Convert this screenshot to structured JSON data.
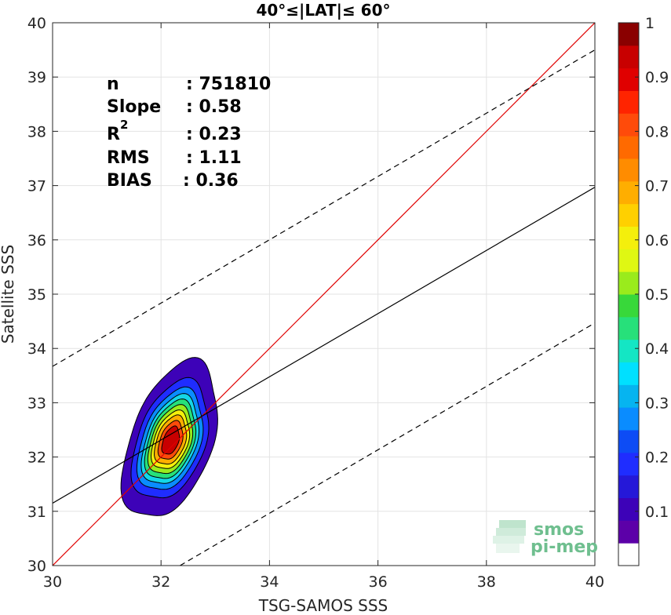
{
  "chart_data": {
    "type": "heatmap",
    "title": "40°≤|LAT|≤ 60°",
    "xlabel": "TSG-SAMOS SSS",
    "ylabel": "Satellite SSS",
    "xlim": [
      30,
      40
    ],
    "ylim": [
      30,
      40
    ],
    "xticks": [
      "30",
      "32",
      "34",
      "36",
      "38",
      "40"
    ],
    "yticks": [
      "30",
      "31",
      "32",
      "33",
      "34",
      "35",
      "36",
      "37",
      "38",
      "39",
      "40"
    ],
    "grid": true,
    "stats": {
      "n": {
        "label": "n",
        "value": ": 751810"
      },
      "slope": {
        "label": "Slope",
        "value": ": 0.58"
      },
      "r2": {
        "label": "R",
        "sup": "2",
        "value": ": 0.23"
      },
      "rms": {
        "label": "RMS",
        "value": ": 1.11"
      },
      "bias": {
        "label": "BIAS",
        "value": ": 0.36"
      }
    },
    "lines": {
      "identity": {
        "color": "#e00000",
        "style": "solid",
        "x": [
          30,
          40
        ],
        "y": [
          30,
          40
        ]
      },
      "fit": {
        "color": "#000000",
        "style": "solid",
        "x": [
          30,
          40
        ],
        "y": [
          31.15,
          36.97
        ]
      },
      "upper_bound": {
        "color": "#000000",
        "style": "dashed",
        "x": [
          30,
          40
        ],
        "y": [
          33.67,
          39.5
        ]
      },
      "lower_bound": {
        "color": "#000000",
        "style": "dashed",
        "x": [
          32.35,
          40
        ],
        "y": [
          30,
          34.47
        ]
      }
    },
    "density_contours": {
      "center": [
        32.18,
        32.3
      ],
      "angle_deg": 70,
      "levels": [
        {
          "level": 0.05,
          "color": "#3d02b8",
          "a": 1.52,
          "b": 0.75
        },
        {
          "level": 0.15,
          "color": "#1f2dff",
          "a": 1.15,
          "b": 0.62
        },
        {
          "level": 0.25,
          "color": "#0a8cff",
          "a": 0.98,
          "b": 0.53
        },
        {
          "level": 0.35,
          "color": "#14d6e6",
          "a": 0.86,
          "b": 0.46
        },
        {
          "level": 0.45,
          "color": "#27e07a",
          "a": 0.76,
          "b": 0.41
        },
        {
          "level": 0.55,
          "color": "#9aeb1c",
          "a": 0.66,
          "b": 0.36
        },
        {
          "level": 0.65,
          "color": "#f4ef0c",
          "a": 0.56,
          "b": 0.31
        },
        {
          "level": 0.75,
          "color": "#ffae00",
          "a": 0.47,
          "b": 0.26
        },
        {
          "level": 0.85,
          "color": "#ff4b0a",
          "a": 0.37,
          "b": 0.2
        },
        {
          "level": 0.95,
          "color": "#c80000",
          "a": 0.27,
          "b": 0.14
        }
      ]
    },
    "colorbar": {
      "range": [
        0,
        1
      ],
      "tick_labels": [
        "0.1",
        "0.2",
        "0.3",
        "0.4",
        "0.5",
        "0.6",
        "0.7",
        "0.8",
        "0.9",
        "1"
      ],
      "tick_values": [
        0.1,
        0.2,
        0.3,
        0.4,
        0.5,
        0.6,
        0.7,
        0.8,
        0.9,
        1.0
      ],
      "colors": [
        "#ffffff",
        "#5c00a8",
        "#3d02b8",
        "#2518d8",
        "#1f2dff",
        "#0d4cf5",
        "#0a8cff",
        "#06b4f0",
        "#00e0ff",
        "#14e6c4",
        "#27e07a",
        "#38d83a",
        "#9aeb1c",
        "#dff713",
        "#f4ef0c",
        "#ffd000",
        "#ffae00",
        "#ff8c00",
        "#ff6a00",
        "#ff4b0a",
        "#ff2400",
        "#e00000",
        "#c80000",
        "#8a0000"
      ]
    }
  },
  "logo": {
    "line1": "smos",
    "line2": "pi-mep"
  }
}
